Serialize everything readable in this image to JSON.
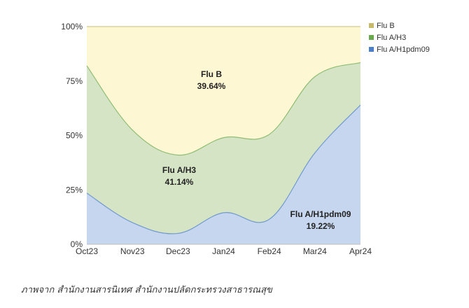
{
  "chart_data": {
    "type": "area",
    "stacked": true,
    "percent": true,
    "categories": [
      "Oct23",
      "Nov23",
      "Dec23",
      "Jan24",
      "Feb24",
      "Mar24",
      "Apr24"
    ],
    "ylim": [
      0,
      100
    ],
    "yticks": [
      "0%",
      "25%",
      "50%",
      "75%",
      "100%"
    ],
    "series": [
      {
        "name": "Flu A/H1pdm09",
        "color": "#c5d6ee",
        "line": "#4a7ec6",
        "values": [
          23.5,
          10,
          5,
          14.5,
          11.5,
          42,
          64
        ]
      },
      {
        "name": "Flu A/H3",
        "color": "#d6e4c6",
        "line": "#6aa84f",
        "values": [
          58.5,
          42.5,
          36,
          34.5,
          39,
          35,
          19.5
        ]
      },
      {
        "name": "Flu B",
        "color": "#fdf7d4",
        "line": "#c9b96a",
        "values": [
          18,
          47.5,
          59,
          51,
          49.5,
          23,
          16.5
        ]
      }
    ],
    "annotations": [
      {
        "name": "Flu B",
        "value": "39.64%"
      },
      {
        "name": "Flu A/H3",
        "value": "41.14%"
      },
      {
        "name": "Flu A/H1pdm09",
        "value": "19.22%"
      }
    ],
    "legend": "top-right",
    "grid": true
  },
  "caption": "ภาพจาก สำนักงานสารนิเทศ สำนักงานปลัดกระทรวงสาธารณสุข"
}
